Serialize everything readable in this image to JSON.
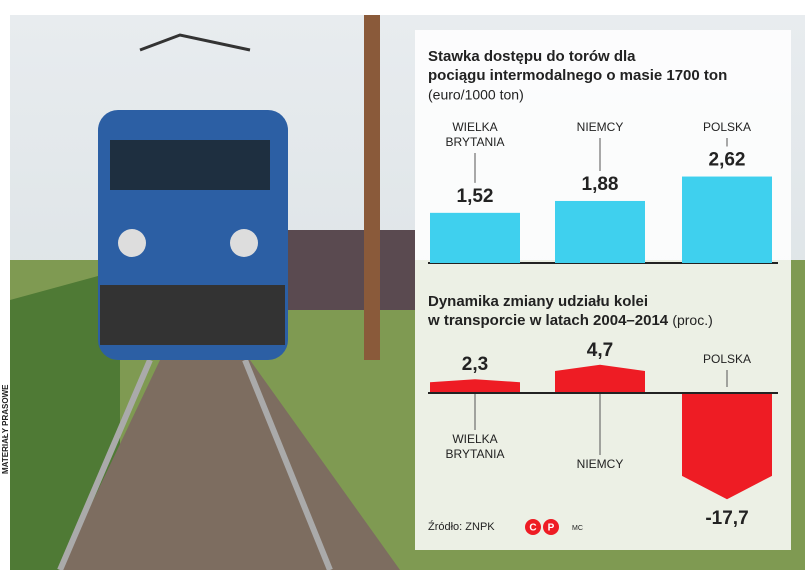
{
  "chart_data": [
    {
      "type": "bar",
      "title": "Stawka dostępu do torów dla pociągu intermodalnego o masie 1700 ton",
      "subtitle": "(euro/1000 ton)",
      "categories": [
        "WIELKA BRYTANIA",
        "NIEMCY",
        "POLSKA"
      ],
      "values": [
        1.52,
        1.88,
        2.62
      ],
      "value_labels": [
        "1,52",
        "1,88",
        "2,62"
      ],
      "color": "#3fd0ee"
    },
    {
      "type": "peak",
      "title": "Dynamika zmiany udziału kolei w transporcie w latach 2004–2014",
      "subtitle": "(proc.)",
      "categories": [
        "WIELKA BRYTANIA",
        "NIEMCY",
        "POLSKA"
      ],
      "values": [
        2.3,
        4.7,
        -17.7
      ],
      "value_labels": [
        "2,3",
        "4,7",
        "-17,7"
      ],
      "color": "#ee1c24"
    }
  ],
  "source": "Źródło: ZNPK",
  "logo": [
    "C",
    "P"
  ],
  "author": "MC",
  "credit": "MATERIAŁY PRASOWE"
}
